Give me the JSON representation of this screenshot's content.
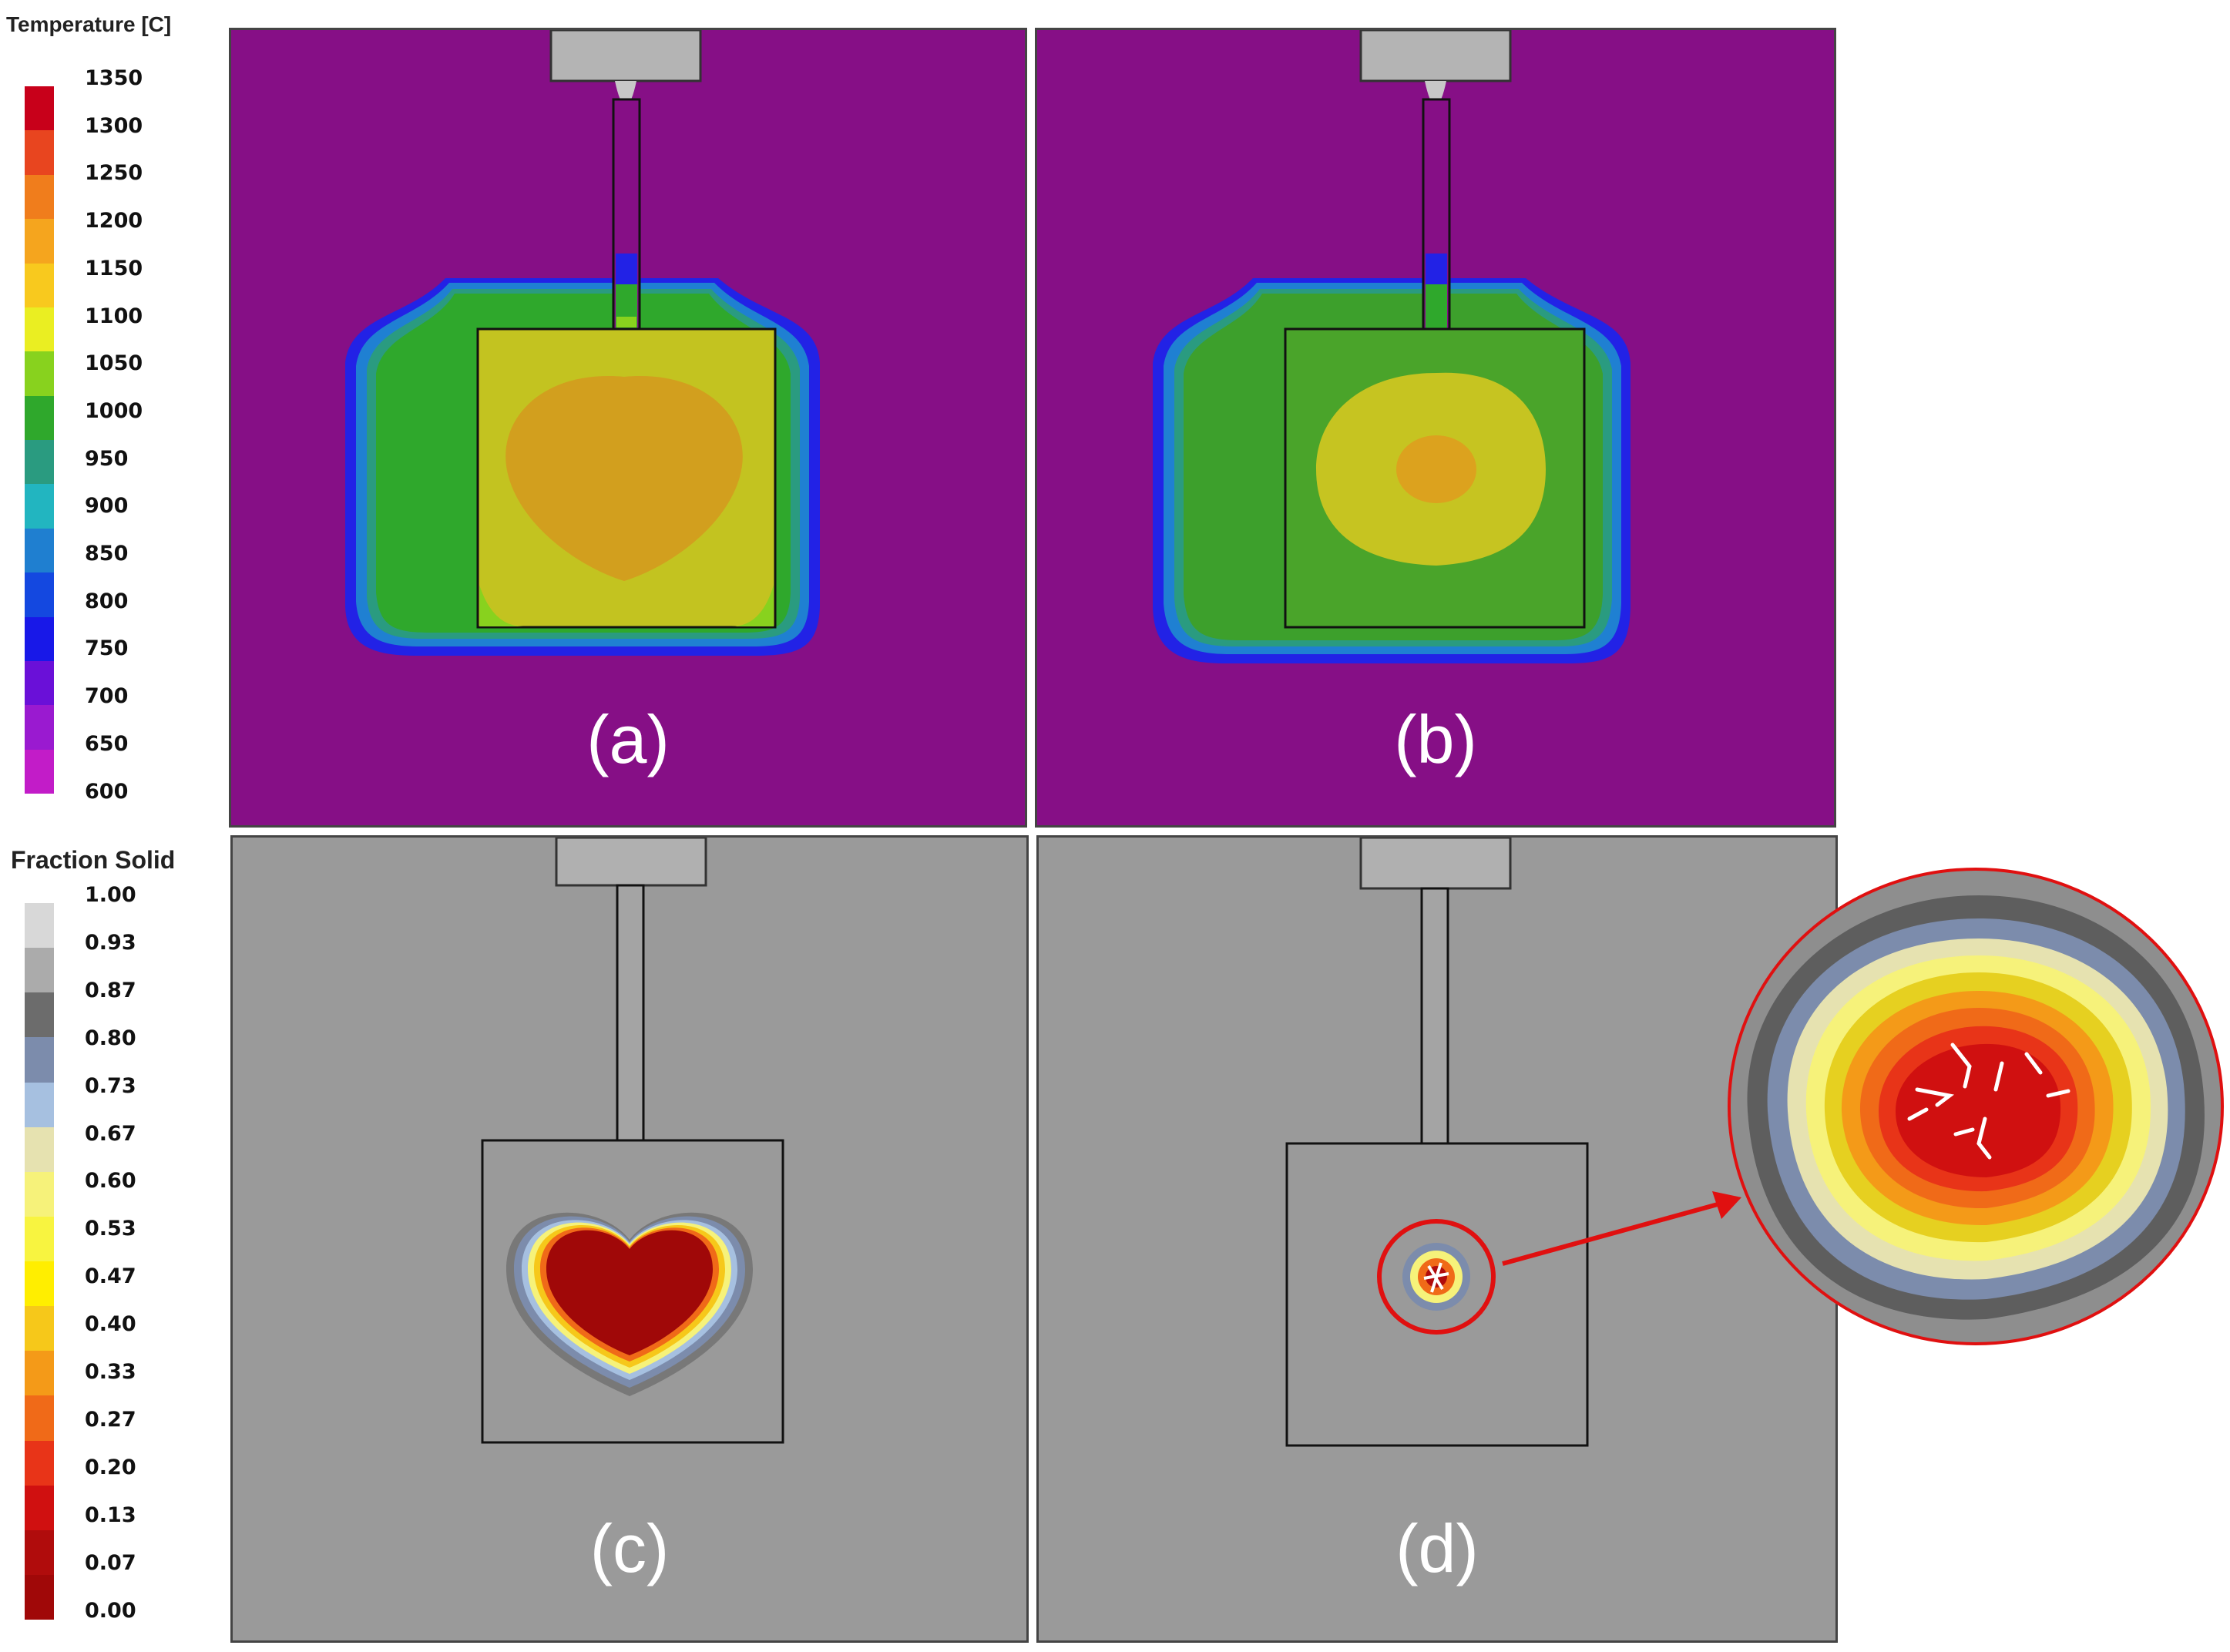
{
  "temperature_legend": {
    "title": "Temperature [C]",
    "ticks": [
      "1350",
      "1300",
      "1250",
      "1200",
      "1150",
      "1100",
      "1050",
      "1000",
      "950",
      "900",
      "850",
      "800",
      "750",
      "700",
      "650",
      "600"
    ],
    "colors": [
      "#c8001a",
      "#e8451f",
      "#f07d1c",
      "#f5a51e",
      "#f8c91e",
      "#eaee22",
      "#88d21e",
      "#2fa82c",
      "#2a9b80",
      "#22b5c0",
      "#1f7fd0",
      "#1448e0",
      "#1818e8",
      "#6a10d8",
      "#9a1ad0",
      "#c21cc8"
    ]
  },
  "fraction_solid_legend": {
    "title": "Fraction Solid",
    "ticks": [
      "1.00",
      "0.93",
      "0.87",
      "0.80",
      "0.73",
      "0.67",
      "0.60",
      "0.53",
      "0.47",
      "0.40",
      "0.33",
      "0.27",
      "0.20",
      "0.13",
      "0.07",
      "0.00"
    ],
    "colors": [
      "#d8d8d8",
      "#ababab",
      "#6c6c6c",
      "#7c8cac",
      "#a6c0e0",
      "#e6e2b0",
      "#f6f27a",
      "#f8f440",
      "#ffee00",
      "#f6c81a",
      "#f49a18",
      "#f06a18",
      "#e83418",
      "#d01010",
      "#b00c0c",
      "#a00808"
    ]
  },
  "panels": [
    {
      "label": "(a)"
    },
    {
      "label": "(b)"
    },
    {
      "label": "(c)"
    },
    {
      "label": "(d)"
    }
  ],
  "colors": {
    "mold_temperature": "#860f86",
    "mold_fraction": "#9a9a9a",
    "casting_a": "#c3c320",
    "hot_core_a": "#d29f1e",
    "casting_b": "#4aa42a",
    "ring_b": "#c6c421",
    "core_b": "#dca21e",
    "callout": "#e01010"
  }
}
